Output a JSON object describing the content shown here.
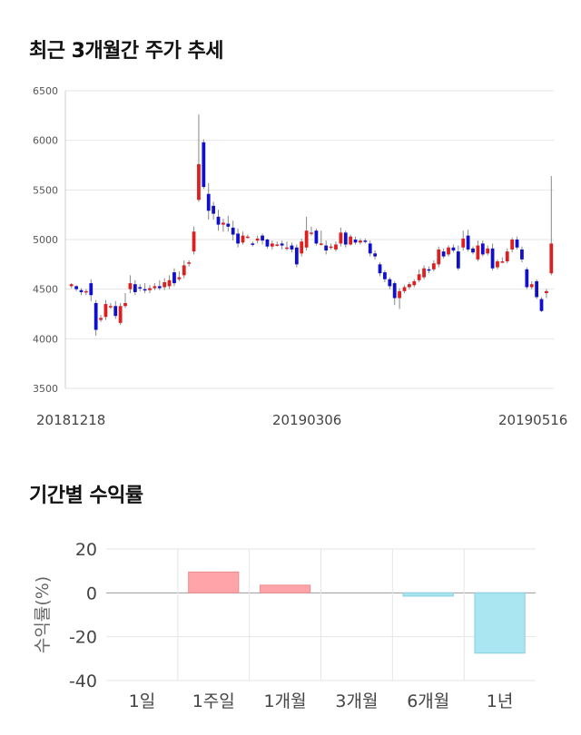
{
  "sections": {
    "price_title": "최근 3개월간 주가 추세",
    "return_title": "기간별 수익률"
  },
  "colors": {
    "up": "#dd1f1f",
    "down": "#1010cc",
    "positive_bar": "#ffa5a9",
    "negative_bar": "#a9e6f2",
    "grid": "#e6e6e6",
    "axis_text": "#555555"
  },
  "chart_data": [
    {
      "type": "candlestick",
      "title": "최근 3개월간 주가 추세",
      "ylim": [
        3500,
        6500
      ],
      "yticks": [
        3500,
        4000,
        4500,
        5000,
        5500,
        6000,
        6500
      ],
      "x_tick_labels": [
        "20181218",
        "20190306",
        "20190516"
      ],
      "grid": true,
      "candles": [
        [
          4530,
          4550,
          4510,
          4560
        ],
        [
          4530,
          4500,
          4480,
          4540
        ],
        [
          4490,
          4470,
          4440,
          4510
        ],
        [
          4470,
          4480,
          4440,
          4500
        ],
        [
          4560,
          4440,
          4380,
          4600
        ],
        [
          4360,
          4090,
          4030,
          4390
        ],
        [
          4190,
          4210,
          4170,
          4240
        ],
        [
          4220,
          4350,
          4190,
          4390
        ],
        [
          4320,
          4330,
          4300,
          4360
        ],
        [
          4330,
          4230,
          4200,
          4380
        ],
        [
          4160,
          4330,
          4140,
          4360
        ],
        [
          4330,
          4360,
          4310,
          4460
        ],
        [
          4500,
          4560,
          4460,
          4640
        ],
        [
          4550,
          4470,
          4440,
          4590
        ],
        [
          4520,
          4510,
          4480,
          4550
        ],
        [
          4500,
          4490,
          4460,
          4560
        ],
        [
          4490,
          4510,
          4460,
          4540
        ],
        [
          4510,
          4530,
          4490,
          4560
        ],
        [
          4530,
          4510,
          4490,
          4590
        ],
        [
          4520,
          4570,
          4490,
          4610
        ],
        [
          4530,
          4590,
          4500,
          4640
        ],
        [
          4670,
          4560,
          4530,
          4710
        ],
        [
          4600,
          4620,
          4580,
          4680
        ],
        [
          4640,
          4740,
          4610,
          4790
        ],
        [
          4760,
          4770,
          4730,
          4790
        ],
        [
          4880,
          5080,
          4850,
          5130
        ],
        [
          5400,
          5760,
          5380,
          6260
        ],
        [
          5980,
          5530,
          5510,
          6010
        ],
        [
          5460,
          5290,
          5200,
          5570
        ],
        [
          5340,
          5260,
          5200,
          5380
        ],
        [
          5230,
          5150,
          5090,
          5300
        ],
        [
          5150,
          5170,
          5080,
          5210
        ],
        [
          5160,
          5130,
          5080,
          5240
        ],
        [
          5120,
          5050,
          4990,
          5190
        ],
        [
          5060,
          4960,
          4920,
          5110
        ],
        [
          4970,
          5040,
          4950,
          5080
        ],
        [
          5030,
          5030,
          5010,
          5050
        ],
        [
          4960,
          4950,
          4930,
          4980
        ],
        [
          4990,
          5010,
          4960,
          5040
        ],
        [
          5040,
          4990,
          4950,
          5060
        ],
        [
          5000,
          4930,
          4910,
          5010
        ],
        [
          4930,
          4960,
          4900,
          4990
        ],
        [
          4950,
          4950,
          4930,
          4980
        ],
        [
          4960,
          4940,
          4900,
          4990
        ],
        [
          4920,
          4920,
          4890,
          4980
        ],
        [
          4940,
          4900,
          4870,
          4970
        ],
        [
          4920,
          4750,
          4720,
          4950
        ],
        [
          4860,
          4980,
          4830,
          5010
        ],
        [
          4920,
          5090,
          4890,
          5230
        ],
        [
          5070,
          5070,
          5040,
          5130
        ],
        [
          5090,
          4960,
          4940,
          5110
        ],
        [
          4960,
          4960,
          4940,
          5090
        ],
        [
          4940,
          4890,
          4850,
          4990
        ],
        [
          4930,
          4930,
          4900,
          4960
        ],
        [
          4900,
          4950,
          4880,
          4980
        ],
        [
          4960,
          5070,
          4930,
          5120
        ],
        [
          5070,
          4950,
          4920,
          5090
        ],
        [
          4950,
          5030,
          4940,
          5050
        ],
        [
          5000,
          4970,
          4950,
          5030
        ],
        [
          4970,
          4990,
          4950,
          5010
        ],
        [
          4990,
          4980,
          4960,
          5010
        ],
        [
          4960,
          4860,
          4830,
          4990
        ],
        [
          4860,
          4830,
          4800,
          4890
        ],
        [
          4750,
          4660,
          4630,
          4770
        ],
        [
          4670,
          4600,
          4570,
          4690
        ],
        [
          4600,
          4530,
          4500,
          4620
        ],
        [
          4560,
          4410,
          4340,
          4580
        ],
        [
          4410,
          4480,
          4300,
          4510
        ],
        [
          4480,
          4520,
          4460,
          4540
        ],
        [
          4520,
          4550,
          4500,
          4570
        ],
        [
          4540,
          4580,
          4520,
          4600
        ],
        [
          4590,
          4650,
          4570,
          4700
        ],
        [
          4620,
          4710,
          4600,
          4740
        ],
        [
          4700,
          4690,
          4660,
          4730
        ],
        [
          4700,
          4760,
          4680,
          4790
        ],
        [
          4750,
          4900,
          4720,
          4930
        ],
        [
          4880,
          4830,
          4810,
          4910
        ],
        [
          4850,
          4920,
          4830,
          4940
        ],
        [
          4920,
          4890,
          4870,
          4950
        ],
        [
          4880,
          4710,
          4690,
          4940
        ],
        [
          4920,
          5010,
          4890,
          5090
        ],
        [
          5040,
          4900,
          4880,
          5100
        ],
        [
          4910,
          4870,
          4850,
          4930
        ],
        [
          4800,
          4940,
          4780,
          4990
        ],
        [
          4960,
          4850,
          4830,
          4990
        ],
        [
          4860,
          4910,
          4840,
          4940
        ],
        [
          4910,
          4710,
          4690,
          4960
        ],
        [
          4720,
          4780,
          4700,
          4800
        ],
        [
          4780,
          4780,
          4760,
          4820
        ],
        [
          4780,
          4880,
          4760,
          4910
        ],
        [
          4900,
          5000,
          4870,
          5020
        ],
        [
          5000,
          4920,
          4900,
          5030
        ],
        [
          4900,
          4800,
          4770,
          4930
        ],
        [
          4700,
          4520,
          4500,
          4720
        ],
        [
          4520,
          4550,
          4500,
          4580
        ],
        [
          4580,
          4420,
          4400,
          4600
        ],
        [
          4400,
          4280,
          4270,
          4420
        ],
        [
          4460,
          4480,
          4410,
          4500
        ],
        [
          4660,
          4960,
          4640,
          5640
        ]
      ]
    },
    {
      "type": "bar",
      "categories": [
        "1일",
        "1주일",
        "1개월",
        "3개월",
        "6개월",
        "1년"
      ],
      "values": [
        0,
        9.5,
        3.5,
        0,
        -1.5,
        -27.5
      ],
      "ylabel": "수익률(%)",
      "ylim": [
        -40,
        20
      ],
      "yticks": [
        20,
        0,
        -20,
        -40
      ],
      "grid": true
    }
  ]
}
